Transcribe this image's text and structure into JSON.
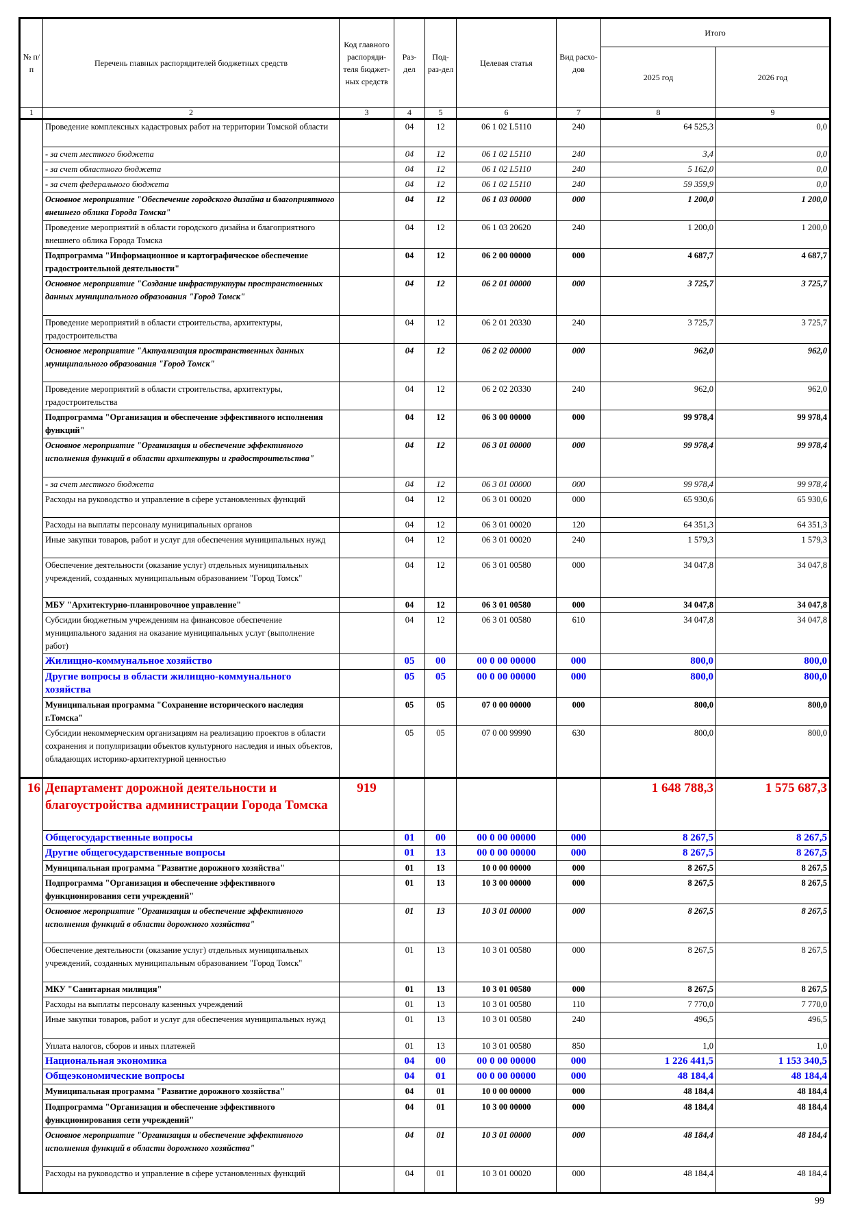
{
  "header": {
    "col_no": "№ п/п",
    "col_name": "Перечень главных распорядителей бюджетных средств",
    "col_code": "Код главного распоряди-теля бюджет-ных средств",
    "col_razdel": "Раз-дел",
    "col_podrazdel": "Под-раз-дел",
    "col_article": "Целевая статья",
    "col_vid": "Вид расхо-дов",
    "col_total": "Итого",
    "col_2025": "2025 год",
    "col_2026": "2026 год",
    "numbers": [
      "1",
      "2",
      "3",
      "4",
      "5",
      "6",
      "7",
      "8",
      "9"
    ]
  },
  "rows": [
    {
      "style": "normal",
      "name": "Проведение комплексных кадастровых работ на территории Томской области",
      "razdel": "04",
      "podrazdel": "12",
      "article": "06 1 02 L5110",
      "vid": "240",
      "y2025": "64 525,3",
      "y2026": "0,0"
    },
    {
      "style": "italic",
      "name": " - за счет местного бюджета",
      "razdel": "04",
      "podrazdel": "12",
      "article": "06 1 02 L5110",
      "vid": "240",
      "y2025": "3,4",
      "y2026": "0,0"
    },
    {
      "style": "italic",
      "name": " - за счет областного бюджета",
      "razdel": "04",
      "podrazdel": "12",
      "article": "06 1 02 L5110",
      "vid": "240",
      "y2025": "5 162,0",
      "y2026": "0,0"
    },
    {
      "style": "italic",
      "name": " - за счет федерального бюджета",
      "razdel": "04",
      "podrazdel": "12",
      "article": "06 1 02 L5110",
      "vid": "240",
      "y2025": "59 359,9",
      "y2026": "0,0"
    },
    {
      "style": "bolditalic",
      "name": "Основное мероприятие \"Обеспечение городского дизайна и благоприятного внешнего облика Города Томска\"",
      "razdel": "04",
      "podrazdel": "12",
      "article": "06 1 03 00000",
      "vid": "000",
      "y2025": "1 200,0",
      "y2026": "1 200,0"
    },
    {
      "style": "normal",
      "name": "Проведение мероприятий в области городского дизайна и благоприятного внешнего облика Города Томска",
      "razdel": "04",
      "podrazdel": "12",
      "article": "06 1 03 20620",
      "vid": "240",
      "y2025": "1 200,0",
      "y2026": "1 200,0"
    },
    {
      "style": "bold",
      "name": "Подпрограмма \"Информационное и картографическое обеспечение градостроительной деятельности\"",
      "razdel": "04",
      "podrazdel": "12",
      "article": "06 2 00 00000",
      "vid": "000",
      "y2025": "4 687,7",
      "y2026": "4 687,7"
    },
    {
      "style": "bolditalic",
      "name": "Основное мероприятие \"Создание инфраструктуры пространственных данных муниципального образования \"Город Томск\"",
      "razdel": "04",
      "podrazdel": "12",
      "article": "06 2 01 00000",
      "vid": "000",
      "y2025": "3 725,7",
      "y2026": "3 725,7"
    },
    {
      "style": "normal",
      "name": "Проведение мероприятий в области строительства, архитектуры, градостроительства",
      "razdel": "04",
      "podrazdel": "12",
      "article": "06 2 01 20330",
      "vid": "240",
      "y2025": "3 725,7",
      "y2026": "3 725,7"
    },
    {
      "style": "bolditalic",
      "name": "Основное мероприятие \"Актуализация пространственных данных муниципального образования \"Город Томск\"",
      "razdel": "04",
      "podrazdel": "12",
      "article": "06 2 02 00000",
      "vid": "000",
      "y2025": "962,0",
      "y2026": "962,0"
    },
    {
      "style": "normal",
      "name": "Проведение мероприятий в области строительства, архитектуры, градостроительства",
      "razdel": "04",
      "podrazdel": "12",
      "article": "06 2 02 20330",
      "vid": "240",
      "y2025": "962,0",
      "y2026": "962,0"
    },
    {
      "style": "bold",
      "name": "Подпрограмма \"Организация и обеспечение эффективного исполнения функций\"",
      "razdel": "04",
      "podrazdel": "12",
      "article": "06 3 00 00000",
      "vid": "000",
      "y2025": "99 978,4",
      "y2026": "99 978,4"
    },
    {
      "style": "bolditalic",
      "name": "Основное мероприятие \"Организация и обеспечение эффективного исполнения функций в области архитектуры и градостроительства\"",
      "razdel": "04",
      "podrazdel": "12",
      "article": "06 3 01 00000",
      "vid": "000",
      "y2025": "99 978,4",
      "y2026": "99 978,4"
    },
    {
      "style": "italic",
      "name": " - за счет местного бюджета",
      "razdel": "04",
      "podrazdel": "12",
      "article": "06 3 01 00000",
      "vid": "000",
      "y2025": "99 978,4",
      "y2026": "99 978,4"
    },
    {
      "style": "normal",
      "name": "Расходы на руководство и управление в сфере установленных функций",
      "razdel": "04",
      "podrazdel": "12",
      "article": "06 3 01 00020",
      "vid": "000",
      "y2025": "65 930,6",
      "y2026": "65 930,6"
    },
    {
      "style": "normal",
      "name": "Расходы на выплаты персоналу муниципальных органов",
      "razdel": "04",
      "podrazdel": "12",
      "article": "06 3 01 00020",
      "vid": "120",
      "y2025": "64 351,3",
      "y2026": "64 351,3"
    },
    {
      "style": "normal",
      "name": "Иные закупки товаров, работ и услуг для обеспечения муниципальных нужд",
      "razdel": "04",
      "podrazdel": "12",
      "article": "06 3 01 00020",
      "vid": "240",
      "y2025": "1 579,3",
      "y2026": "1 579,3"
    },
    {
      "style": "normal",
      "name": "Обеспечение деятельности (оказание услуг) отдельных муниципальных учреждений, созданных муниципальным образованием \"Город Томск\"",
      "razdel": "04",
      "podrazdel": "12",
      "article": "06 3 01 00580",
      "vid": "000",
      "y2025": "34 047,8",
      "y2026": "34 047,8"
    },
    {
      "style": "bold",
      "name": "МБУ \"Архитектурно-планировочное управление\"",
      "razdel": "04",
      "podrazdel": "12",
      "article": "06 3 01 00580",
      "vid": "000",
      "y2025": "34 047,8",
      "y2026": "34 047,8"
    },
    {
      "style": "normal",
      "name": "Субсидии бюджетным учреждениям на финансовое обеспечение муниципального задания на оказание муниципальных услуг (выполнение работ)",
      "razdel": "04",
      "podrazdel": "12",
      "article": "06 3 01 00580",
      "vid": "610",
      "y2025": "34 047,8",
      "y2026": "34 047,8"
    },
    {
      "style": "blue",
      "name": "Жилищно-коммунальное хозяйство",
      "razdel": "05",
      "podrazdel": "00",
      "article": "00 0 00 00000",
      "vid": "000",
      "y2025": "800,0",
      "y2026": "800,0"
    },
    {
      "style": "blue",
      "name": "Другие вопросы в области жилищно-коммунального хозяйства",
      "razdel": "05",
      "podrazdel": "05",
      "article": "00 0 00 00000",
      "vid": "000",
      "y2025": "800,0",
      "y2026": "800,0"
    },
    {
      "style": "bold",
      "name": "Муниципальная программа \"Сохранение исторического наследия г.Томска\"",
      "razdel": "05",
      "podrazdel": "05",
      "article": "07 0 00 00000",
      "vid": "000",
      "y2025": "800,0",
      "y2026": "800,0"
    },
    {
      "style": "normal",
      "name": "Субсидии некоммерческим организациям на реализацию проектов в области сохранения и популяризации объектов культурного наследия и иных объектов, обладающих историко-архитектурной ценностью",
      "razdel": "05",
      "podrazdel": "05",
      "article": "07 0 00 99990",
      "vid": "630",
      "y2025": "800,0",
      "y2026": "800,0"
    },
    {
      "style": "red",
      "no": "16",
      "name": "Департамент дорожной деятельности и благоустройства администрации Города Томска",
      "code": "919",
      "y2025": "1 648 788,3",
      "y2026": "1 575 687,3"
    },
    {
      "style": "blue",
      "name": "Общегосударственные вопросы",
      "razdel": "01",
      "podrazdel": "00",
      "article": "00 0 00 00000",
      "vid": "000",
      "y2025": "8 267,5",
      "y2026": "8 267,5"
    },
    {
      "style": "blue",
      "name": "Другие общегосударственные вопросы",
      "razdel": "01",
      "podrazdel": "13",
      "article": "00 0 00 00000",
      "vid": "000",
      "y2025": "8 267,5",
      "y2026": "8 267,5"
    },
    {
      "style": "bold",
      "name": "Муниципальная программа \"Развитие дорожного хозяйства\"",
      "razdel": "01",
      "podrazdel": "13",
      "article": "10 0 00 00000",
      "vid": "000",
      "y2025": "8 267,5",
      "y2026": "8 267,5"
    },
    {
      "style": "bold",
      "name": "Подпрограмма \"Организация и обеспечение эффективного функционирования сети учреждений\"",
      "razdel": "01",
      "podrazdel": "13",
      "article": "10 3 00 00000",
      "vid": "000",
      "y2025": "8 267,5",
      "y2026": "8 267,5"
    },
    {
      "style": "bolditalic",
      "name": "Основное мероприятие \"Организация и обеспечение эффективного исполнения функций в области дорожного хозяйства\"",
      "razdel": "01",
      "podrazdel": "13",
      "article": "10 3 01 00000",
      "vid": "000",
      "y2025": "8 267,5",
      "y2026": "8 267,5"
    },
    {
      "style": "normal",
      "name": "Обеспечение деятельности (оказание услуг) отдельных муниципальных учреждений, созданных муниципальным образованием \"Город Томск\"",
      "razdel": "01",
      "podrazdel": "13",
      "article": "10 3 01 00580",
      "vid": "000",
      "y2025": "8 267,5",
      "y2026": "8 267,5"
    },
    {
      "style": "bold",
      "name": "МКУ \"Санитарная милиция\"",
      "razdel": "01",
      "podrazdel": "13",
      "article": "10 3 01 00580",
      "vid": "000",
      "y2025": "8 267,5",
      "y2026": "8 267,5"
    },
    {
      "style": "normal",
      "name": "Расходы на выплаты персоналу казенных учреждений",
      "razdel": "01",
      "podrazdel": "13",
      "article": "10 3 01 00580",
      "vid": "110",
      "y2025": "7 770,0",
      "y2026": "7 770,0"
    },
    {
      "style": "normal",
      "name": "Иные закупки товаров, работ и услуг для обеспечения муниципальных нужд",
      "razdel": "01",
      "podrazdel": "13",
      "article": "10 3 01 00580",
      "vid": "240",
      "y2025": "496,5",
      "y2026": "496,5"
    },
    {
      "style": "normal",
      "name": "Уплата налогов, сборов и иных платежей",
      "razdel": "01",
      "podrazdel": "13",
      "article": "10 3 01 00580",
      "vid": "850",
      "y2025": "1,0",
      "y2026": "1,0"
    },
    {
      "style": "blue",
      "name": "Национальная экономика",
      "razdel": "04",
      "podrazdel": "00",
      "article": "00 0 00 00000",
      "vid": "000",
      "y2025": "1 226 441,5",
      "y2026": "1 153 340,5"
    },
    {
      "style": "blue",
      "name": "Общеэкономические вопросы",
      "razdel": "04",
      "podrazdel": "01",
      "article": "00 0 00 00000",
      "vid": "000",
      "y2025": "48 184,4",
      "y2026": "48 184,4"
    },
    {
      "style": "bold",
      "name": "Муниципальная программа \"Развитие дорожного хозяйства\"",
      "razdel": "04",
      "podrazdel": "01",
      "article": "10 0 00 00000",
      "vid": "000",
      "y2025": "48 184,4",
      "y2026": "48 184,4"
    },
    {
      "style": "bold",
      "name": "Подпрограмма \"Организация и обеспечение эффективного функционирования сети учреждений\"",
      "razdel": "04",
      "podrazdel": "01",
      "article": "10 3 00 00000",
      "vid": "000",
      "y2025": "48 184,4",
      "y2026": "48 184,4"
    },
    {
      "style": "bolditalic",
      "name": "Основное мероприятие \"Организация и обеспечение эффективного исполнения функций в области дорожного хозяйства\"",
      "razdel": "04",
      "podrazdel": "01",
      "article": "10 3 01 00000",
      "vid": "000",
      "y2025": "48 184,4",
      "y2026": "48 184,4"
    },
    {
      "style": "normal",
      "name": "Расходы на руководство и управление в сфере установленных функций",
      "razdel": "04",
      "podrazdel": "01",
      "article": "10 3 01 00020",
      "vid": "000",
      "y2025": "48 184,4",
      "y2026": "48 184,4"
    }
  ],
  "page_number": "99"
}
